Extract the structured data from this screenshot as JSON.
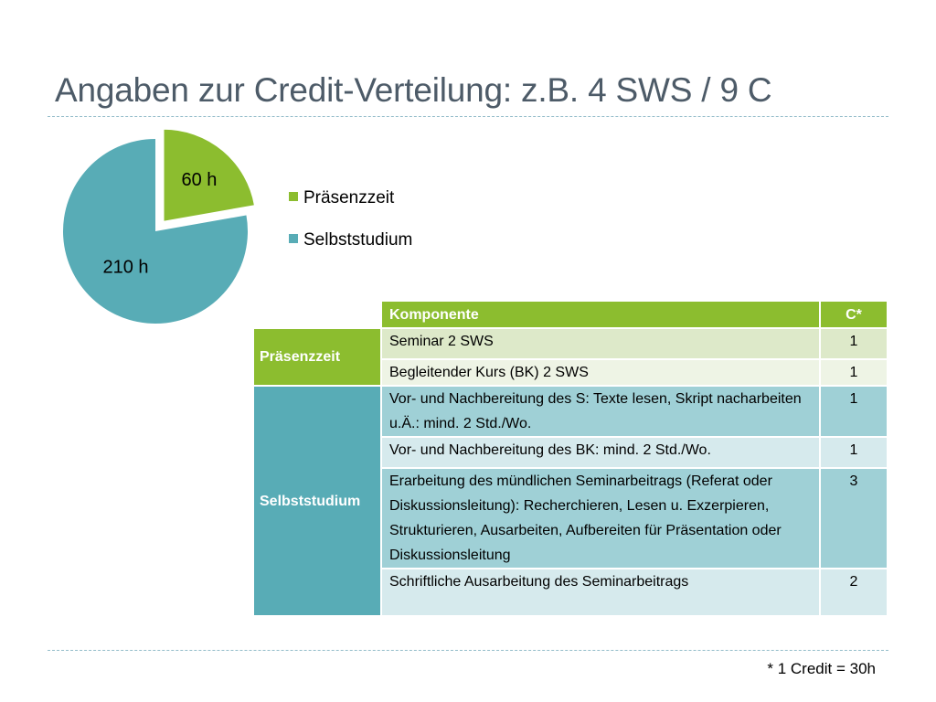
{
  "title": "Angaben zur Credit-Verteilung: z.B. 4 SWS / 9 C",
  "pie": {
    "slices": [
      {
        "label": "Präsenzzeit",
        "hours": 60,
        "text": "60 h",
        "color": "#8cbd2f"
      },
      {
        "label": "Selbststudium",
        "hours": 210,
        "text": "210 h",
        "color": "#58acb6"
      }
    ]
  },
  "legend": {
    "item1": "Präsenzzeit",
    "item2": "Selbststudium"
  },
  "table": {
    "header": {
      "component": "Komponente",
      "credits": "C*"
    },
    "groups": {
      "presence": "Präsenzzeit",
      "self": "Selbststudium"
    },
    "rows": [
      {
        "text": "Seminar 2 SWS",
        "c": "1"
      },
      {
        "text": "Begleitender Kurs (BK) 2 SWS",
        "c": "1"
      },
      {
        "text": "Vor- und Nachbereitung des S: Texte lesen, Skript nacharbeiten u.Ä.: mind. 2 Std./Wo.",
        "c": "1"
      },
      {
        "text": "Vor- und Nachbereitung des BK: mind. 2 Std./Wo.",
        "c": "1"
      },
      {
        "text": "Erarbeitung des mündlichen Seminarbeitrags (Referat oder Diskussionsleitung): Recherchieren, Lesen u. Exzerpieren, Strukturieren, Ausarbeiten, Aufbereiten für Präsentation oder Diskussionsleitung",
        "c": "3"
      },
      {
        "text": "Schriftliche Ausarbeitung des Seminarbeitrags",
        "c": "2"
      }
    ]
  },
  "footnote": "* 1 Credit = 30h",
  "colors": {
    "green": "#8cbd2f",
    "teal": "#58acb6",
    "title": "#4d5b68"
  }
}
